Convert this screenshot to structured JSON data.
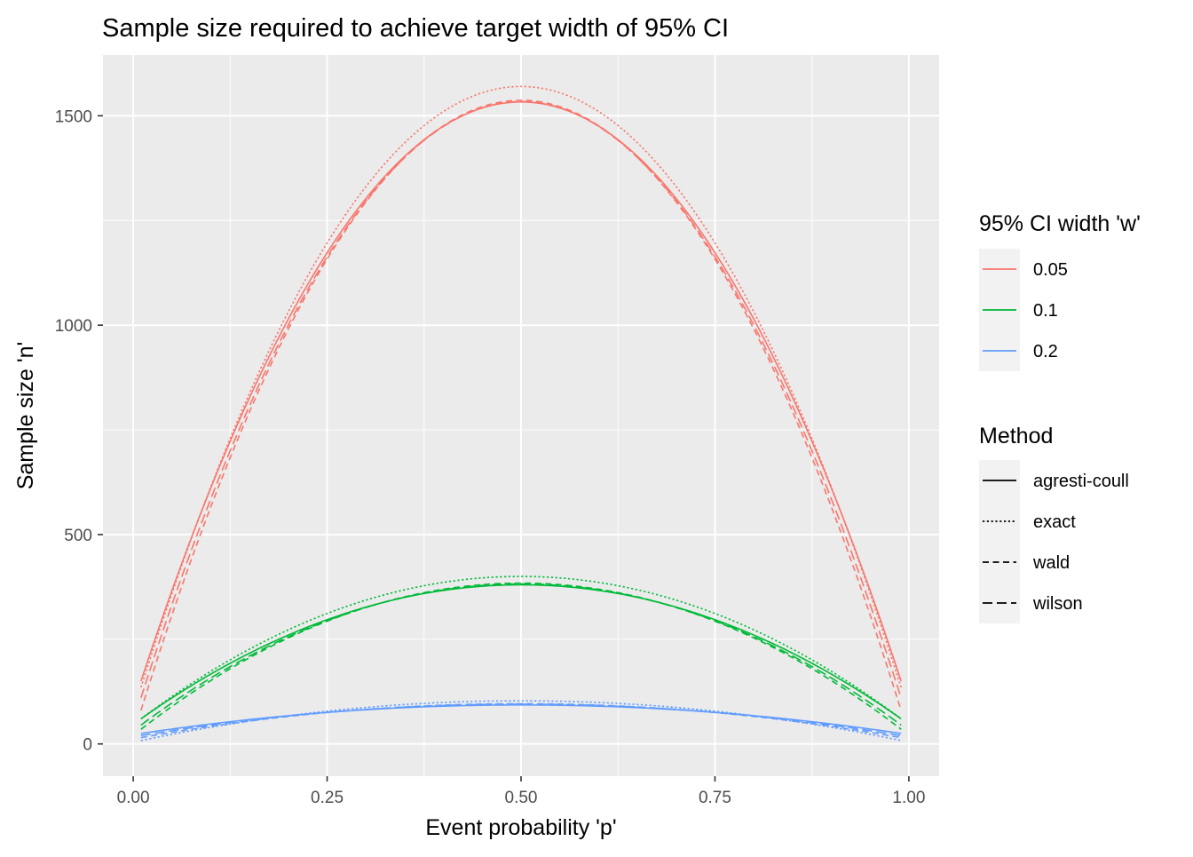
{
  "chart_data": {
    "type": "line",
    "title": "Sample size required to achieve target width of 95% CI",
    "xlabel": "Event probability 'p'",
    "ylabel": "Sample size 'n'",
    "xlim": [
      -0.039,
      1.039
    ],
    "ylim": [
      -77,
      1645
    ],
    "xticks": [
      0.0,
      0.25,
      0.5,
      0.75,
      1.0
    ],
    "xtick_labels": [
      "0.00",
      "0.25",
      "0.50",
      "0.75",
      "1.00"
    ],
    "yticks": [
      0,
      500,
      1000,
      1500
    ],
    "ytick_labels": [
      "0",
      "500",
      "1000",
      "1500"
    ],
    "grid": true,
    "p_range": [
      0.01,
      0.99
    ],
    "color_legend": {
      "title": "95% CI width 'w'",
      "entries": [
        {
          "label": "0.05",
          "color": "#F8766D"
        },
        {
          "label": "0.1",
          "color": "#00BA38"
        },
        {
          "label": "0.2",
          "color": "#619CFF"
        }
      ]
    },
    "linetype_legend": {
      "title": "Method",
      "entries": [
        {
          "label": "agresti-coull",
          "dash": "solid"
        },
        {
          "label": "exact",
          "dash": "dotted"
        },
        {
          "label": "wald",
          "dash": "dashed"
        },
        {
          "label": "wilson",
          "dash": "longdash"
        }
      ]
    },
    "series": [
      {
        "width": "0.05",
        "method": "agresti-coull",
        "peak_n": 1533,
        "end_n": 150
      },
      {
        "width": "0.05",
        "method": "exact",
        "peak_n": 1570,
        "end_n": 135
      },
      {
        "width": "0.05",
        "method": "wald",
        "peak_n": 1537,
        "end_n": 80
      },
      {
        "width": "0.05",
        "method": "wilson",
        "peak_n": 1534,
        "end_n": 110
      },
      {
        "width": "0.1",
        "method": "agresti-coull",
        "peak_n": 380,
        "end_n": 60
      },
      {
        "width": "0.1",
        "method": "exact",
        "peak_n": 400,
        "end_n": 60
      },
      {
        "width": "0.1",
        "method": "wald",
        "peak_n": 384,
        "end_n": 35
      },
      {
        "width": "0.1",
        "method": "wilson",
        "peak_n": 382,
        "end_n": 45
      },
      {
        "width": "0.2",
        "method": "agresti-coull",
        "peak_n": 93,
        "end_n": 25
      },
      {
        "width": "0.2",
        "method": "exact",
        "peak_n": 103,
        "end_n": 8
      },
      {
        "width": "0.2",
        "method": "wald",
        "peak_n": 96,
        "end_n": 15
      },
      {
        "width": "0.2",
        "method": "wilson",
        "peak_n": 95,
        "end_n": 20
      }
    ]
  }
}
